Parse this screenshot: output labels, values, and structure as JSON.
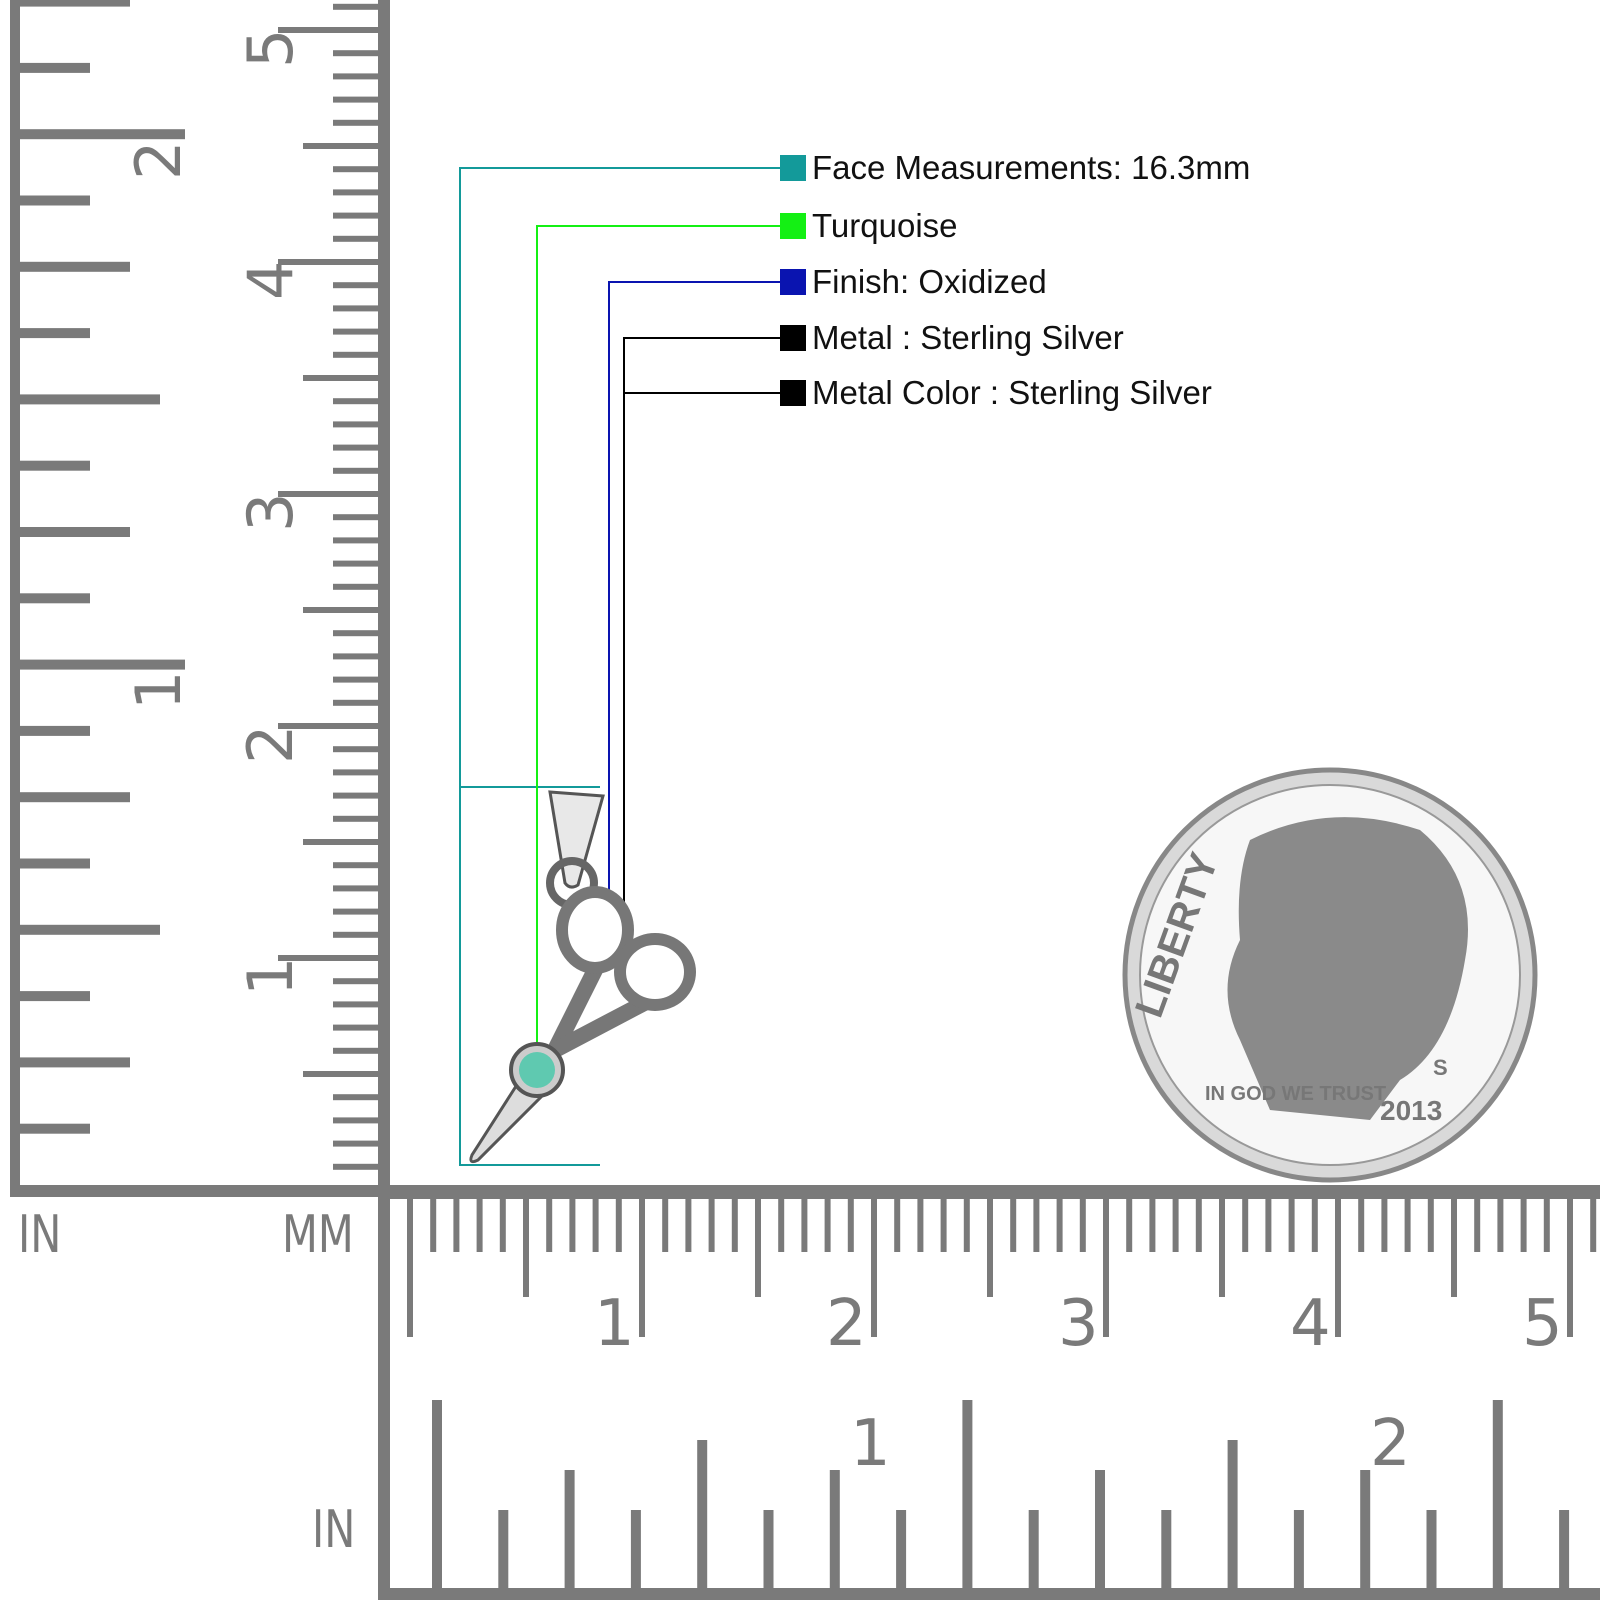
{
  "specs": [
    {
      "label": "Face Measurements: 16.3mm",
      "color": "#139a9a"
    },
    {
      "label": "Turquoise",
      "color": "#14f014"
    },
    {
      "label": "Finish: Oxidized",
      "color": "#0a14b0"
    },
    {
      "label": "Metal : Sterling Silver",
      "color": "#000000"
    },
    {
      "label": "Metal Color : Sterling Silver",
      "color": "#000000"
    }
  ],
  "ruler": {
    "left_unit_in": "IN",
    "left_unit_mm": "MM",
    "bottom_unit_in": "IN",
    "mm_labels": [
      "1",
      "2",
      "3",
      "4",
      "5"
    ],
    "in_labels": [
      "1",
      "2"
    ],
    "color": "#7a7a7a"
  },
  "coin": {
    "text_top": "LIBERTY",
    "motto": "IN GOD WE TRUST",
    "year": "2013",
    "mint": "S"
  }
}
